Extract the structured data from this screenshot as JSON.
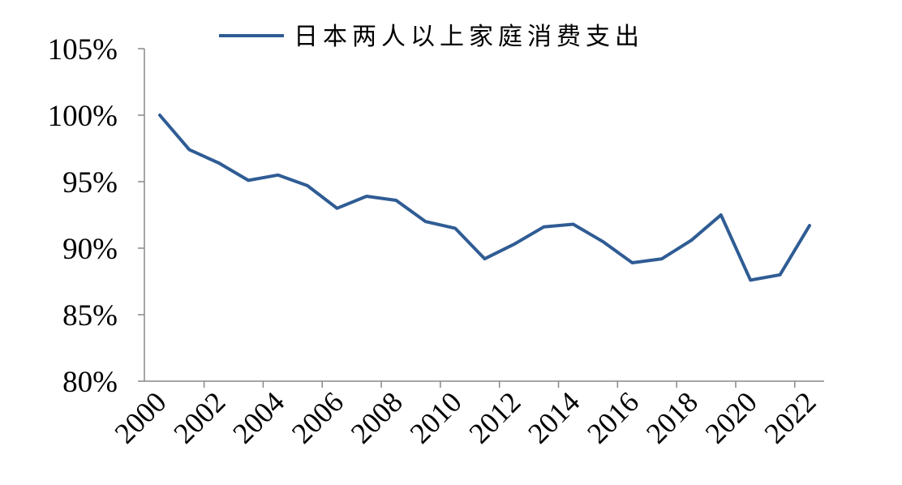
{
  "chart_data": {
    "type": "line",
    "title": "",
    "xlabel": "",
    "ylabel": "",
    "x": [
      2000,
      2001,
      2002,
      2003,
      2004,
      2005,
      2006,
      2007,
      2008,
      2009,
      2010,
      2011,
      2012,
      2013,
      2014,
      2015,
      2016,
      2017,
      2018,
      2019,
      2020,
      2021,
      2022
    ],
    "series": [
      {
        "name": "日本两人以上家庭消费支出",
        "color": "#2f5c94",
        "values": [
          100.0,
          97.4,
          96.4,
          95.1,
          95.5,
          94.7,
          93.0,
          93.9,
          93.6,
          92.0,
          91.5,
          89.2,
          90.3,
          91.6,
          91.8,
          90.5,
          88.9,
          89.2,
          90.6,
          92.5,
          87.6,
          88.0,
          91.7
        ]
      }
    ],
    "ylim": [
      80,
      105
    ],
    "y_ticks": [
      "80%",
      "85%",
      "90%",
      "95%",
      "100%",
      "105%"
    ],
    "x_tick_labels": [
      "2000",
      "2002",
      "2004",
      "2006",
      "2008",
      "2010",
      "2012",
      "2014",
      "2016",
      "2018",
      "2020",
      "2022"
    ],
    "grid": false,
    "legend_position": "top-center"
  }
}
